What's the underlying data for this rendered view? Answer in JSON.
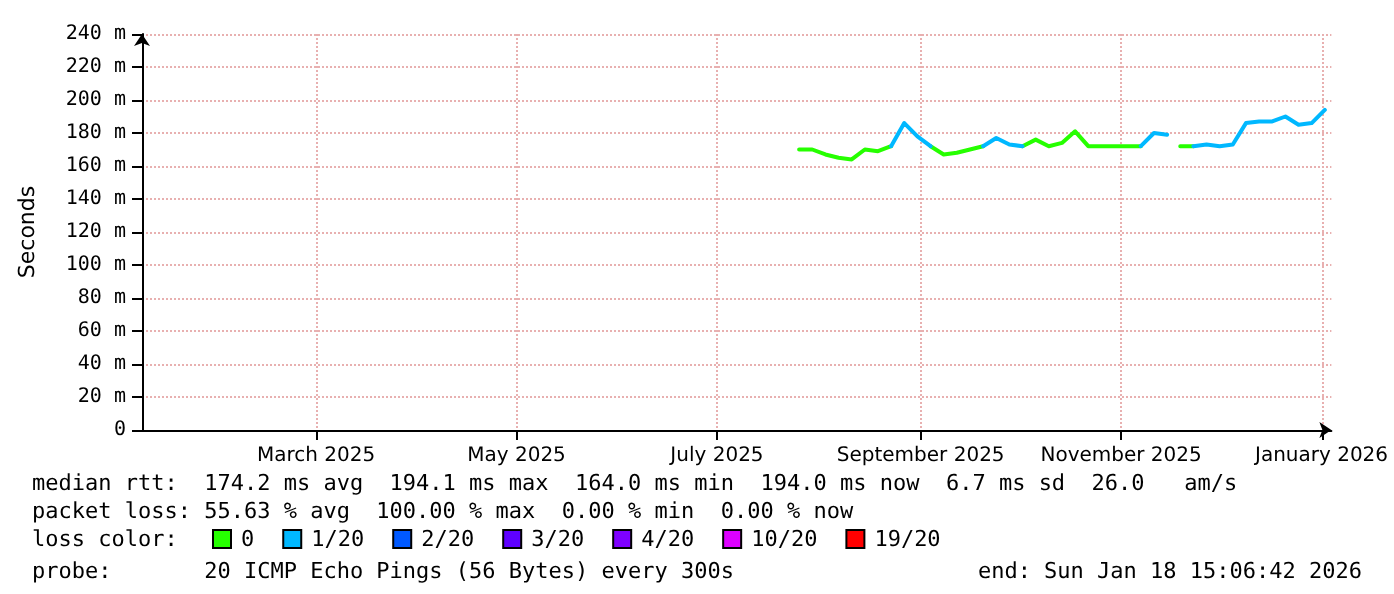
{
  "chart_data": {
    "type": "line",
    "ylabel": "Seconds",
    "x": [
      "2025-08-09",
      "2025-08-13",
      "2025-08-17",
      "2025-08-21",
      "2025-08-25",
      "2025-08-29",
      "2025-09-02",
      "2025-09-06",
      "2025-09-10",
      "2025-09-14",
      "2025-09-18",
      "2025-09-22",
      "2025-09-26",
      "2025-09-30",
      "2025-10-04",
      "2025-10-08",
      "2025-10-12",
      "2025-10-16",
      "2025-10-20",
      "2025-10-24",
      "2025-10-28",
      "2025-11-01",
      "2025-11-05",
      "2025-11-09",
      "2025-11-13",
      "2025-11-17",
      "2025-11-21",
      "2025-11-25",
      "2025-11-29",
      "2025-12-03",
      "2025-12-07",
      "2025-12-11",
      "2025-12-15",
      "2025-12-19",
      "2025-12-23",
      "2025-12-27",
      "2025-12-31",
      "2026-01-04",
      "2026-01-08",
      "2026-01-12",
      "2026-01-16"
    ],
    "series": [
      {
        "name": "0",
        "color": "#26ff00",
        "values": [
          170,
          170,
          167,
          165,
          164,
          170,
          169,
          172,
          null,
          null,
          172,
          167,
          168,
          170,
          172,
          null,
          null,
          172,
          176,
          172,
          174,
          181,
          172,
          172,
          172,
          172,
          172,
          null,
          null,
          172,
          172,
          null,
          null,
          null,
          null,
          null,
          null,
          null,
          null,
          null,
          null
        ]
      },
      {
        "name": "1/20",
        "color": "#00b8ff",
        "values": [
          null,
          null,
          null,
          null,
          null,
          null,
          null,
          172,
          186,
          178,
          172,
          null,
          null,
          null,
          172,
          177,
          173,
          172,
          null,
          null,
          null,
          null,
          null,
          null,
          null,
          null,
          172,
          180,
          179,
          null,
          172,
          173,
          172,
          173,
          186,
          187,
          187,
          190,
          185,
          186,
          194
        ]
      },
      {
        "name": "2/20",
        "color": "#0059ff",
        "values": [
          null,
          null,
          null,
          null,
          null,
          null,
          null,
          null,
          null,
          null,
          null,
          null,
          null,
          null,
          null,
          null,
          null,
          null,
          null,
          null,
          null,
          null,
          null,
          null,
          null,
          null,
          null,
          null,
          null,
          null,
          null,
          null,
          null,
          null,
          null,
          null,
          null,
          null,
          null,
          null,
          null
        ]
      },
      {
        "name": "3/20",
        "color": "#5e00ff",
        "values": [
          null,
          null,
          null,
          null,
          null,
          null,
          null,
          null,
          null,
          null,
          null,
          null,
          null,
          null,
          null,
          null,
          null,
          null,
          null,
          null,
          null,
          null,
          null,
          null,
          null,
          null,
          null,
          null,
          null,
          null,
          null,
          null,
          null,
          null,
          null,
          null,
          null,
          null,
          null,
          null,
          null
        ]
      },
      {
        "name": "4/20",
        "color": "#7e00ff",
        "values": [
          null,
          null,
          null,
          null,
          null,
          null,
          null,
          null,
          null,
          null,
          null,
          null,
          null,
          null,
          null,
          null,
          null,
          null,
          null,
          null,
          null,
          null,
          null,
          null,
          null,
          null,
          null,
          null,
          null,
          null,
          null,
          null,
          null,
          null,
          null,
          null,
          null,
          null,
          null,
          null,
          null
        ]
      },
      {
        "name": "10/20",
        "color": "#dd00ff",
        "values": [
          null,
          null,
          null,
          null,
          null,
          null,
          null,
          null,
          null,
          null,
          null,
          null,
          null,
          null,
          null,
          null,
          null,
          null,
          null,
          null,
          null,
          null,
          null,
          null,
          null,
          null,
          null,
          null,
          null,
          null,
          null,
          null,
          null,
          null,
          null,
          null,
          null,
          null,
          null,
          null,
          null
        ]
      },
      {
        "name": "19/20",
        "color": "#ff0000",
        "values": [
          null,
          null,
          null,
          null,
          null,
          null,
          null,
          null,
          null,
          null,
          null,
          null,
          null,
          null,
          null,
          null,
          null,
          null,
          null,
          null,
          null,
          null,
          null,
          null,
          null,
          null,
          null,
          null,
          null,
          null,
          null,
          null,
          null,
          null,
          null,
          null,
          null,
          null,
          null,
          null,
          null
        ]
      }
    ],
    "xlim": [
      "2025-01-21",
      "2026-01-18"
    ],
    "xticks": [
      {
        "value": "2025-03-15",
        "label": "March 2025"
      },
      {
        "value": "2025-05-15",
        "label": "May 2025"
      },
      {
        "value": "2025-07-15",
        "label": "July 2025"
      },
      {
        "value": "2025-09-15",
        "label": "September 2025"
      },
      {
        "value": "2025-11-15",
        "label": "November 2025"
      },
      {
        "value": "2026-01-15",
        "label": "January 2026"
      }
    ],
    "ylim": [
      0,
      240
    ],
    "yticks": [
      0,
      {
        "value": 20,
        "label": "20 m"
      },
      {
        "value": 40,
        "label": "40 m"
      },
      {
        "value": 60,
        "label": "60 m"
      },
      {
        "value": 80,
        "label": "80 m"
      },
      {
        "value": 100,
        "label": "100 m"
      },
      {
        "value": 120,
        "label": "120 m"
      },
      {
        "value": 140,
        "label": "140 m"
      },
      {
        "value": 160,
        "label": "160 m"
      },
      {
        "value": 180,
        "label": "180 m"
      },
      {
        "value": 200,
        "label": "200 m"
      },
      {
        "value": 220,
        "label": "220 m"
      },
      {
        "value": 240,
        "label": "240 m"
      }
    ],
    "grid": true,
    "legend": "bottom",
    "legend_title": "loss color:",
    "marker": "none",
    "line_style": "solid",
    "annotations": [
      "median rtt:  174.2 ms avg  194.1 ms max  164.0 ms min  194.0 ms now  6.7 ms sd  26.0   am/s",
      "packet loss: 55.63 % avg  100.00 % max  0.00 % min  0.00 % now",
      "probe:       20 ICMP Echo Pings (56 Bytes) every 300s",
      "end: Sun Jan 18 15:06:42 2026"
    ]
  }
}
